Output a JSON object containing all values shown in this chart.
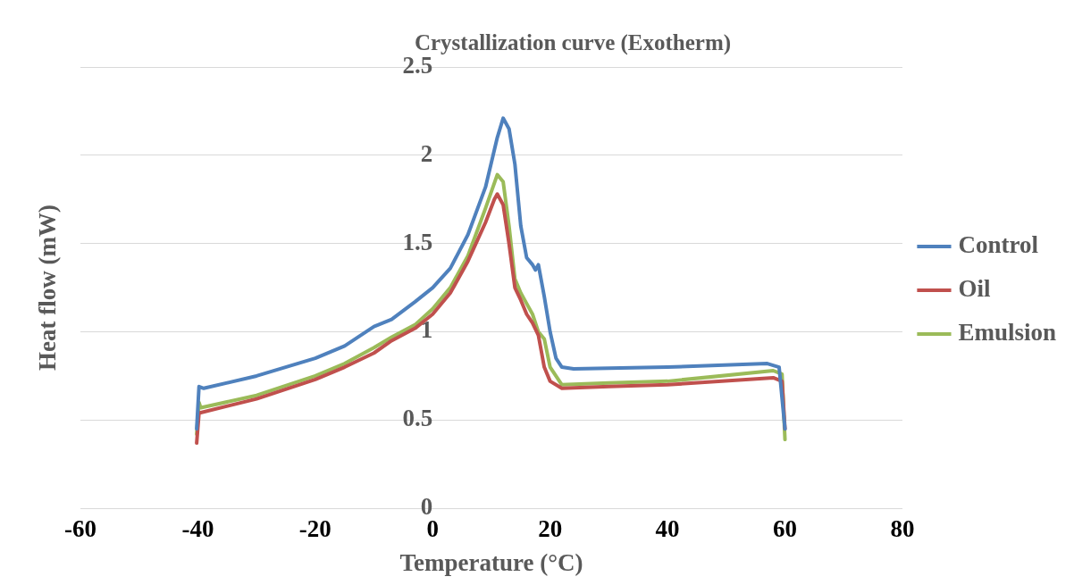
{
  "chart_data": {
    "type": "line",
    "title": "Crystallization curve (Exotherm)",
    "xlabel": "Temperature (°C)",
    "ylabel": "Heat flow (mW)",
    "xlim": [
      -60,
      80
    ],
    "xticks": [
      -60,
      -40,
      -20,
      0,
      20,
      40,
      60,
      80
    ],
    "ylim": [
      0,
      2.5
    ],
    "yticks": [
      0,
      0.5,
      1,
      1.5,
      2,
      2.5
    ],
    "grid": "y",
    "legend": "right",
    "marker": "none",
    "line_style": "solid",
    "series": [
      {
        "name": "Control",
        "color": "#4f81bd",
        "x": [
          -40.2,
          -39.8,
          -39,
          -30,
          -20,
          -15,
          -10,
          -7,
          -3,
          0,
          3,
          6,
          9,
          11,
          12,
          13,
          14,
          15,
          16,
          17,
          17.5,
          18,
          19,
          20,
          21,
          22,
          24,
          40,
          57,
          59,
          60
        ],
        "values": [
          0.45,
          0.69,
          0.68,
          0.75,
          0.85,
          0.92,
          1.03,
          1.07,
          1.17,
          1.25,
          1.36,
          1.55,
          1.82,
          2.1,
          2.21,
          2.15,
          1.95,
          1.6,
          1.42,
          1.38,
          1.35,
          1.38,
          1.2,
          1.0,
          0.85,
          0.8,
          0.79,
          0.8,
          0.82,
          0.8,
          0.45
        ]
      },
      {
        "name": "Oil",
        "color": "#c0504d",
        "x": [
          -40.2,
          -39.8,
          -30,
          -20,
          -15,
          -10,
          -7,
          -3,
          0,
          3,
          6,
          9,
          10.5,
          11,
          12,
          13,
          14,
          15,
          16,
          17,
          18,
          19,
          20,
          22,
          30,
          40,
          58,
          59.5,
          60
        ],
        "values": [
          0.37,
          0.54,
          0.62,
          0.73,
          0.8,
          0.88,
          0.95,
          1.02,
          1.1,
          1.22,
          1.4,
          1.62,
          1.75,
          1.78,
          1.72,
          1.5,
          1.25,
          1.18,
          1.1,
          1.05,
          0.98,
          0.8,
          0.72,
          0.68,
          0.69,
          0.7,
          0.74,
          0.72,
          0.45
        ]
      },
      {
        "name": "Emulsion",
        "color": "#9bbb59",
        "x": [
          -40.2,
          -39.8,
          -39.5,
          -30,
          -20,
          -15,
          -10,
          -7,
          -3,
          0,
          3,
          6,
          9,
          11,
          12,
          13,
          14,
          15,
          16,
          17,
          18,
          19,
          20,
          22,
          30,
          40,
          58,
          59.5,
          60
        ],
        "values": [
          0.42,
          0.6,
          0.57,
          0.64,
          0.75,
          0.82,
          0.91,
          0.97,
          1.04,
          1.13,
          1.25,
          1.43,
          1.7,
          1.89,
          1.85,
          1.6,
          1.3,
          1.22,
          1.16,
          1.1,
          1.0,
          0.96,
          0.8,
          0.7,
          0.71,
          0.72,
          0.78,
          0.76,
          0.39
        ]
      }
    ]
  }
}
